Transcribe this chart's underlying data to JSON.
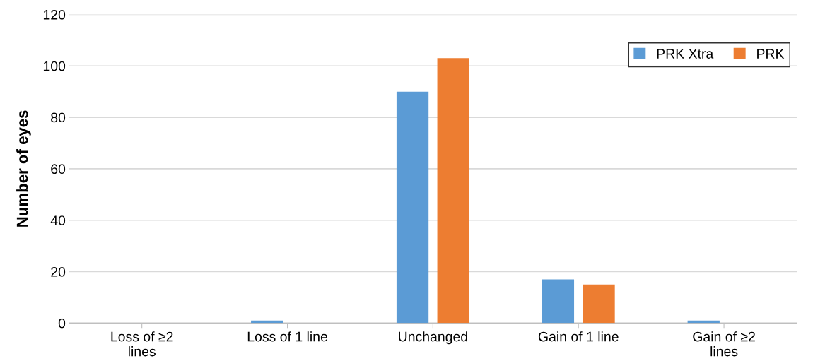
{
  "chart_data": {
    "type": "bar",
    "ylabel": "Number of eyes",
    "categories": [
      "Loss of ≥2\nlines",
      "Loss of 1 line",
      "Unchanged",
      "Gain of 1 line",
      "Gain of ≥2\nlines"
    ],
    "series": [
      {
        "name": "PRK Xtra",
        "color": "#5b9bd5",
        "values": [
          0,
          1,
          90,
          17,
          1
        ]
      },
      {
        "name": "PRK",
        "color": "#ed7d31",
        "values": [
          0,
          0,
          103,
          15,
          0
        ]
      }
    ],
    "ylim": [
      0,
      120
    ],
    "yticks": [
      0,
      20,
      40,
      60,
      80,
      100,
      120
    ],
    "grid": "y",
    "legend": "top right"
  }
}
